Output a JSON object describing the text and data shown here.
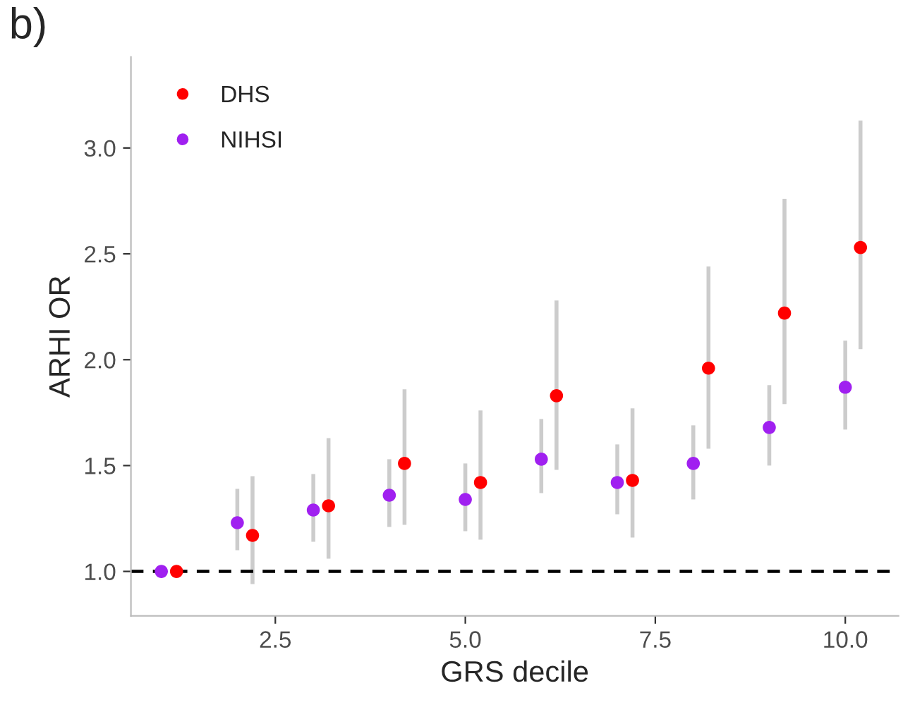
{
  "chart_data": {
    "type": "scatter",
    "xlabel": "GRS decile",
    "ylabel": "ARHI OR",
    "annotations": [
      "b)"
    ],
    "xlim": [
      0.6,
      10.7
    ],
    "ylim": [
      0.79,
      3.43
    ],
    "xticks": [
      2.5,
      {
        "value": 5,
        "label": "5.0"
      },
      7.5,
      {
        "value": 10,
        "label": "10.0"
      }
    ],
    "yticks": [
      {
        "value": 1,
        "label": "1.0"
      },
      1.5,
      {
        "value": 2,
        "label": "2.0"
      },
      2.5,
      {
        "value": 3,
        "label": "3.0"
      }
    ],
    "grid": false,
    "legend": "top left",
    "marker": "circle",
    "ref_lines": [
      {
        "axis": "y",
        "value": 1.0,
        "line_style": "dashed",
        "color": "#000000"
      }
    ],
    "series": [
      {
        "name": "DHS",
        "color": "#ff0000",
        "x": [
          1.2,
          2.2,
          3.2,
          4.2,
          5.2,
          6.2,
          7.2,
          8.2,
          9.2,
          10.2
        ],
        "values": [
          1.0,
          1.17,
          1.31,
          1.51,
          1.42,
          1.83,
          1.43,
          1.96,
          2.22,
          2.53
        ],
        "errors": [
          null,
          [
            0.94,
            1.45
          ],
          [
            1.06,
            1.63
          ],
          [
            1.22,
            1.86
          ],
          [
            1.15,
            1.76
          ],
          [
            1.48,
            2.28
          ],
          [
            1.16,
            1.77
          ],
          [
            1.58,
            2.44
          ],
          [
            1.79,
            2.76
          ],
          [
            2.05,
            3.13
          ]
        ]
      },
      {
        "name": "NIHSI",
        "color": "#a020f0",
        "x": [
          1,
          2,
          3,
          4,
          5,
          6,
          7,
          8,
          9,
          10
        ],
        "values": [
          1.0,
          1.23,
          1.29,
          1.36,
          1.34,
          1.53,
          1.42,
          1.51,
          1.68,
          1.87
        ],
        "errors": [
          null,
          [
            1.1,
            1.39
          ],
          [
            1.14,
            1.46
          ],
          [
            1.21,
            1.53
          ],
          [
            1.19,
            1.51
          ],
          [
            1.37,
            1.72
          ],
          [
            1.27,
            1.6
          ],
          [
            1.34,
            1.69
          ],
          [
            1.5,
            1.88
          ],
          [
            1.67,
            2.09
          ]
        ]
      }
    ]
  }
}
